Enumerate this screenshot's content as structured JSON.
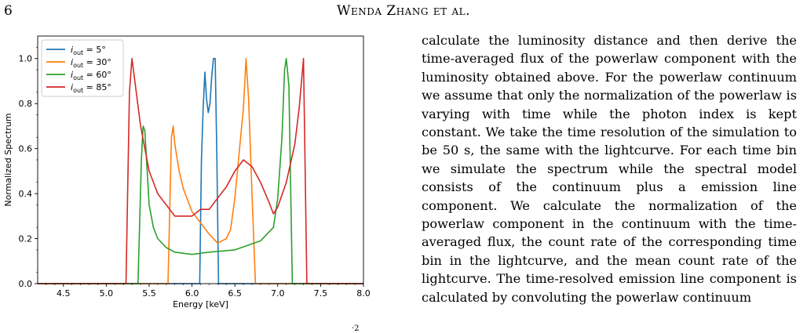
{
  "header": {
    "page_number": "6",
    "running_head": "Wenda Zhang et al."
  },
  "chart_data": {
    "type": "line",
    "xlabel": "Energy [keV]",
    "ylabel": "Normalized Spectrum",
    "xlim": [
      4.2,
      8.0
    ],
    "ylim": [
      0.0,
      1.1
    ],
    "xticks": [
      "4.5",
      "5.0",
      "5.5",
      "6.0",
      "6.5",
      "7.0",
      "7.5",
      "8.0"
    ],
    "yticks": [
      "0.0",
      "0.2",
      "0.4",
      "0.6",
      "0.8",
      "1.0"
    ],
    "legend_position": "top-left",
    "series": [
      {
        "name_prefix": "i",
        "name_sub": "out",
        "name_value": " = 5°",
        "color": "#1f77b4",
        "x": [
          4.2,
          6.09,
          6.11,
          6.13,
          6.15,
          6.17,
          6.19,
          6.21,
          6.23,
          6.25,
          6.27,
          6.29,
          6.31,
          6.33,
          8.0
        ],
        "y": [
          0.0,
          0.0,
          0.55,
          0.78,
          0.94,
          0.82,
          0.76,
          0.8,
          0.92,
          1.0,
          1.0,
          0.55,
          0.0,
          0.0,
          0.0
        ]
      },
      {
        "name_prefix": "i",
        "name_sub": "out",
        "name_value": " = 30°",
        "color": "#ff7f0e",
        "x": [
          4.2,
          5.72,
          5.76,
          5.78,
          5.8,
          5.85,
          5.9,
          6.0,
          6.1,
          6.2,
          6.3,
          6.4,
          6.45,
          6.5,
          6.55,
          6.6,
          6.63,
          6.66,
          6.7,
          6.74,
          8.0
        ],
        "y": [
          0.0,
          0.0,
          0.65,
          0.7,
          0.62,
          0.5,
          0.42,
          0.32,
          0.27,
          0.22,
          0.18,
          0.2,
          0.24,
          0.38,
          0.58,
          0.78,
          1.0,
          0.82,
          0.4,
          0.0,
          0.0
        ]
      },
      {
        "name_prefix": "i",
        "name_sub": "out",
        "name_value": " = 60°",
        "color": "#2ca02c",
        "x": [
          4.2,
          5.37,
          5.41,
          5.43,
          5.45,
          5.5,
          5.55,
          5.6,
          5.7,
          5.8,
          6.0,
          6.2,
          6.5,
          6.8,
          6.95,
          7.0,
          7.05,
          7.08,
          7.1,
          7.13,
          7.17,
          8.0
        ],
        "y": [
          0.0,
          0.0,
          0.55,
          0.7,
          0.68,
          0.35,
          0.25,
          0.2,
          0.16,
          0.14,
          0.13,
          0.14,
          0.15,
          0.19,
          0.25,
          0.38,
          0.65,
          0.95,
          1.0,
          0.88,
          0.0,
          0.0
        ]
      },
      {
        "name_prefix": "i",
        "name_sub": "out",
        "name_value": " = 85°",
        "color": "#d62728",
        "x": [
          4.2,
          5.23,
          5.27,
          5.3,
          5.35,
          5.4,
          5.5,
          5.6,
          5.7,
          5.8,
          6.0,
          6.1,
          6.2,
          6.3,
          6.4,
          6.5,
          6.6,
          6.7,
          6.8,
          6.9,
          6.95,
          7.0,
          7.1,
          7.2,
          7.25,
          7.3,
          7.34,
          8.0
        ],
        "y": [
          0.0,
          0.0,
          0.85,
          1.0,
          0.85,
          0.7,
          0.5,
          0.4,
          0.35,
          0.3,
          0.3,
          0.33,
          0.33,
          0.38,
          0.43,
          0.5,
          0.55,
          0.52,
          0.45,
          0.36,
          0.31,
          0.34,
          0.45,
          0.62,
          0.78,
          1.0,
          0.0,
          0.0
        ]
      }
    ]
  },
  "body": {
    "paragraph": "calculate the luminosity distance and then derive the time-averaged flux of the powerlaw component with the luminosity obtained above. For the powerlaw continuum we assume that only the normalization of the powerlaw is varying with time while the photon index is kept constant. We take the time resolution of the simulation to be 50 s, the same with the lightcurve. For each time bin we simulate the spectrum while the spectral model consists of the continuum plus a emission line component. We calculate the normalization of the powerlaw component in the continuum with the time-averaged flux, the count rate of the corresponding time bin in the lightcurve, and the mean count rate of the lightcurve. The time-resolved emission line component is calculated by convoluting the powerlaw continuum",
    "fragment": "·2"
  }
}
